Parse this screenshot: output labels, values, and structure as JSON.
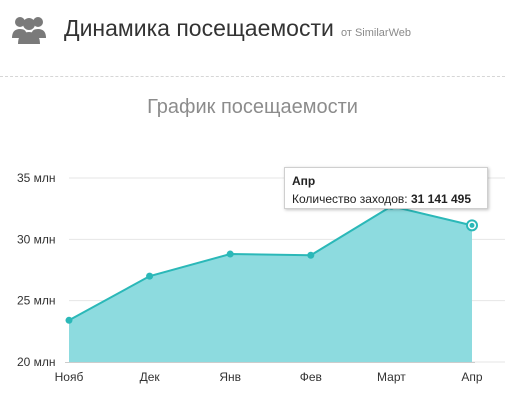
{
  "header": {
    "title": "Динамика посещаемости",
    "source": "от SimilarWeb",
    "icon": "users-icon"
  },
  "tooltip": {
    "month": "Апр",
    "label": "Количество заходов:",
    "value": "31 141 495"
  },
  "chart_data": {
    "type": "area",
    "title": "График посещаемости",
    "xlabel": "",
    "ylabel": "",
    "categories": [
      "Нояб",
      "Дек",
      "Янв",
      "Фев",
      "Март",
      "Апр"
    ],
    "values": [
      23.4,
      27.0,
      28.8,
      28.7,
      32.7,
      31.14
    ],
    "ylim": [
      20,
      35
    ],
    "yticks": [
      20,
      25,
      30,
      35
    ],
    "ytick_labels": [
      "20 млн",
      "25 млн",
      "30 млн",
      "35 млн"
    ],
    "grid": true,
    "line_color": "#2bb8b8",
    "fill_color": "#8ddbdf"
  }
}
